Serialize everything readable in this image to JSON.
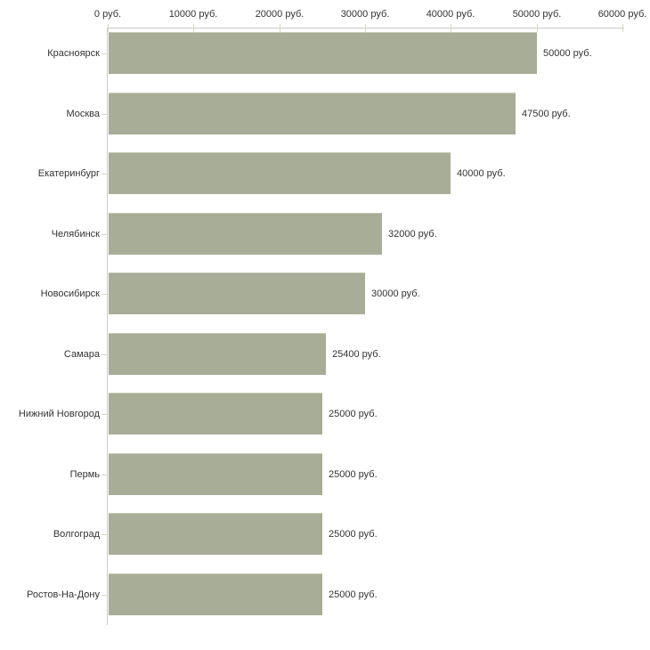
{
  "chart_data": {
    "type": "bar",
    "orientation": "horizontal",
    "title": "",
    "xlabel": "",
    "ylabel": "",
    "unit": "руб.",
    "xlim": [
      0,
      60000
    ],
    "grid": false,
    "legend": null,
    "categories": [
      "Красноярск",
      "Москва",
      "Екатеринбург",
      "Челябинск",
      "Новосибирск",
      "Самара",
      "Нижний Новгород",
      "Пермь",
      "Волгоград",
      "Ростов-На-Дону"
    ],
    "values": [
      50000,
      47500,
      40000,
      32000,
      30000,
      25400,
      25000,
      25000,
      25000,
      25000
    ],
    "value_labels": [
      "50000 руб.",
      "47500 руб.",
      "40000 руб.",
      "32000 руб.",
      "30000 руб.",
      "25400 руб.",
      "25000 руб.",
      "25000 руб.",
      "25000 руб.",
      "25000 руб."
    ],
    "x_ticks": [
      0,
      10000,
      20000,
      30000,
      40000,
      50000,
      60000
    ],
    "x_tick_labels": [
      "0 руб.",
      "10000 руб.",
      "20000 руб.",
      "30000 руб.",
      "40000 руб.",
      "50000 руб.",
      "60000 руб."
    ],
    "colors": {
      "bar": "#a8ad97",
      "bar_highlight": "#c5c9b2",
      "axis_line": "#c9c9c9",
      "tick_mark": "#d5d9bc",
      "text": "#333333",
      "background": "#ffffff"
    }
  }
}
